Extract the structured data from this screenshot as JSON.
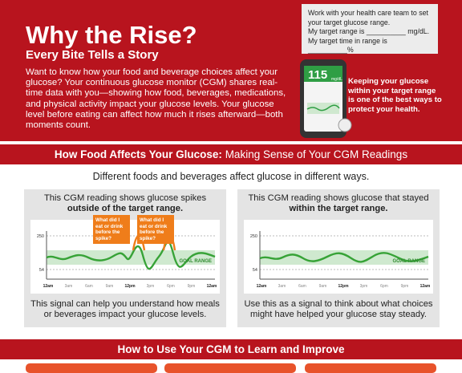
{
  "header": {
    "title": "Why the Rise?",
    "subtitle": "Every Bite Tells a Story",
    "intro": "Want to know how your food and beverage choices affect your glucose? Your continuous glucose monitor (CGM) shares real-time data with you—showing how food, beverages, medications, and physical activity impact your glucose levels. Your glucose level before eating can affect how much it rises afterward—both moments count."
  },
  "target_box": {
    "lines": [
      "Work with your health care team to set your target glucose range.",
      "My target range is __________ mg/dL.",
      "My target time in range is __________%"
    ]
  },
  "phone": {
    "reading": "115",
    "unit": "mg/dL"
  },
  "callout": "Keeping your glucose within your target range is one of the best ways to protect your health.",
  "section1": {
    "heading_bold": "How Food Affects Your Glucose:",
    "heading_rest": "Making Sense of Your CGM Readings",
    "intro": "Different foods and beverages affect glucose in different ways.",
    "panels": [
      {
        "title_plain": "This CGM reading shows glucose spikes",
        "title_bold": "outside of the target range.",
        "chart": {
          "y_labels": [
            "250",
            "54"
          ],
          "x_labels": [
            "12am",
            "3am",
            "6am",
            "9am",
            "12pm",
            "3pm",
            "6pm",
            "9pm",
            "12am"
          ],
          "goal_label": "GOAL RANGE",
          "callouts": [
            "What did I eat or drink before the spike?",
            "What did I eat or drink before the spike?"
          ]
        },
        "caption": "This signal can help you understand how meals or beverages impact your glucose levels."
      },
      {
        "title_plain": "This CGM reading shows glucose that stayed",
        "title_bold": "within the target range.",
        "chart": {
          "y_labels": [
            "250",
            "54"
          ],
          "x_labels": [
            "12am",
            "3am",
            "6am",
            "9am",
            "12pm",
            "3pm",
            "6pm",
            "9pm",
            "12am"
          ],
          "goal_label": "GOAL RANGE",
          "callouts": []
        },
        "caption": "Use this as a signal to think about what choices might have helped your glucose stay steady."
      }
    ]
  },
  "section2": {
    "heading": "How to Use Your CGM to Learn and Improve"
  }
}
